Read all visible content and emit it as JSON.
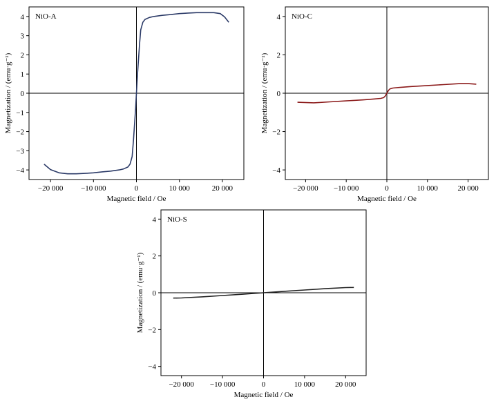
{
  "chart_data": [
    {
      "type": "line",
      "panel_label": "NiO-A",
      "xlabel": "Magnetic field / Oe",
      "ylabel": "Magnetization / (emu·g⁻¹)",
      "xlim": [
        -25000,
        25000
      ],
      "ylim": [
        -4.5,
        4.5
      ],
      "xticks": [
        -20000,
        -10000,
        0,
        10000,
        20000
      ],
      "xtick_labels": [
        "−20 000",
        "−10 000",
        "0",
        "10 000",
        "20 000"
      ],
      "yticks": [
        -4,
        -3,
        -2,
        -1,
        0,
        1,
        2,
        3,
        4
      ],
      "ytick_labels": [
        "−4",
        "−3",
        "−2",
        "−1",
        "0",
        "1",
        "2",
        "3",
        "4"
      ],
      "color": "#2b3a67",
      "x": [
        -21500,
        -20000,
        -18000,
        -16000,
        -14000,
        -12000,
        -10000,
        -8000,
        -6000,
        -4000,
        -3000,
        -2000,
        -1500,
        -1000,
        -700,
        -400,
        -200,
        0,
        200,
        400,
        700,
        1000,
        1500,
        2000,
        3000,
        4000,
        6000,
        8000,
        10000,
        12000,
        14000,
        16000,
        18000,
        19500,
        20500,
        21500
      ],
      "y": [
        -3.7,
        -3.98,
        -4.15,
        -4.2,
        -4.2,
        -4.18,
        -4.15,
        -4.1,
        -4.06,
        -4.0,
        -3.95,
        -3.85,
        -3.7,
        -3.3,
        -2.5,
        -1.5,
        -0.8,
        0.0,
        0.8,
        1.5,
        2.5,
        3.3,
        3.7,
        3.85,
        3.95,
        4.0,
        4.06,
        4.1,
        4.15,
        4.18,
        4.2,
        4.2,
        4.2,
        4.15,
        3.98,
        3.7
      ]
    },
    {
      "type": "line",
      "panel_label": "NiO-C",
      "xlabel": "Magnetic field / Oe",
      "ylabel": "Magnetization / (emu·g⁻¹)",
      "xlim": [
        -25000,
        25000
      ],
      "ylim": [
        -4.5,
        4.5
      ],
      "xticks": [
        -20000,
        -10000,
        0,
        10000,
        20000
      ],
      "xtick_labels": [
        "−20 000",
        "−10 000",
        "0",
        "10 000",
        "20 000"
      ],
      "yticks": [
        -4,
        -2,
        0,
        2,
        4
      ],
      "ytick_labels": [
        "−4",
        "−2",
        "0",
        "2",
        "4"
      ],
      "color": "#8b1a1a",
      "x": [
        -22000,
        -18000,
        -14000,
        -10000,
        -6000,
        -3000,
        -1500,
        -800,
        -400,
        0,
        400,
        800,
        1500,
        3000,
        6000,
        10000,
        14000,
        18000,
        20000,
        22000
      ],
      "y": [
        -0.47,
        -0.5,
        -0.45,
        -0.4,
        -0.35,
        -0.3,
        -0.27,
        -0.23,
        -0.15,
        0.0,
        0.15,
        0.23,
        0.27,
        0.3,
        0.35,
        0.4,
        0.45,
        0.5,
        0.5,
        0.47
      ]
    },
    {
      "type": "line",
      "panel_label": "NiO-S",
      "xlabel": "Magnetic field  / Oe",
      "ylabel": "Magnetization / (emu·g⁻¹)",
      "xlim": [
        -25000,
        25000
      ],
      "ylim": [
        -4.5,
        4.5
      ],
      "xticks": [
        -20000,
        -10000,
        0,
        10000,
        20000
      ],
      "xtick_labels": [
        "−20 000",
        "−10 000",
        "0",
        "10 000",
        "20 000"
      ],
      "yticks": [
        -4,
        -2,
        0,
        2,
        4
      ],
      "ytick_labels": [
        "−4",
        "−2",
        "0",
        "2",
        "4"
      ],
      "color": "#222222",
      "x": [
        -22000,
        -20000,
        -15000,
        -10000,
        -5000,
        0,
        5000,
        10000,
        15000,
        20000,
        22000
      ],
      "y": [
        -0.29,
        -0.28,
        -0.22,
        -0.15,
        -0.08,
        0.0,
        0.08,
        0.15,
        0.22,
        0.28,
        0.29
      ]
    }
  ]
}
